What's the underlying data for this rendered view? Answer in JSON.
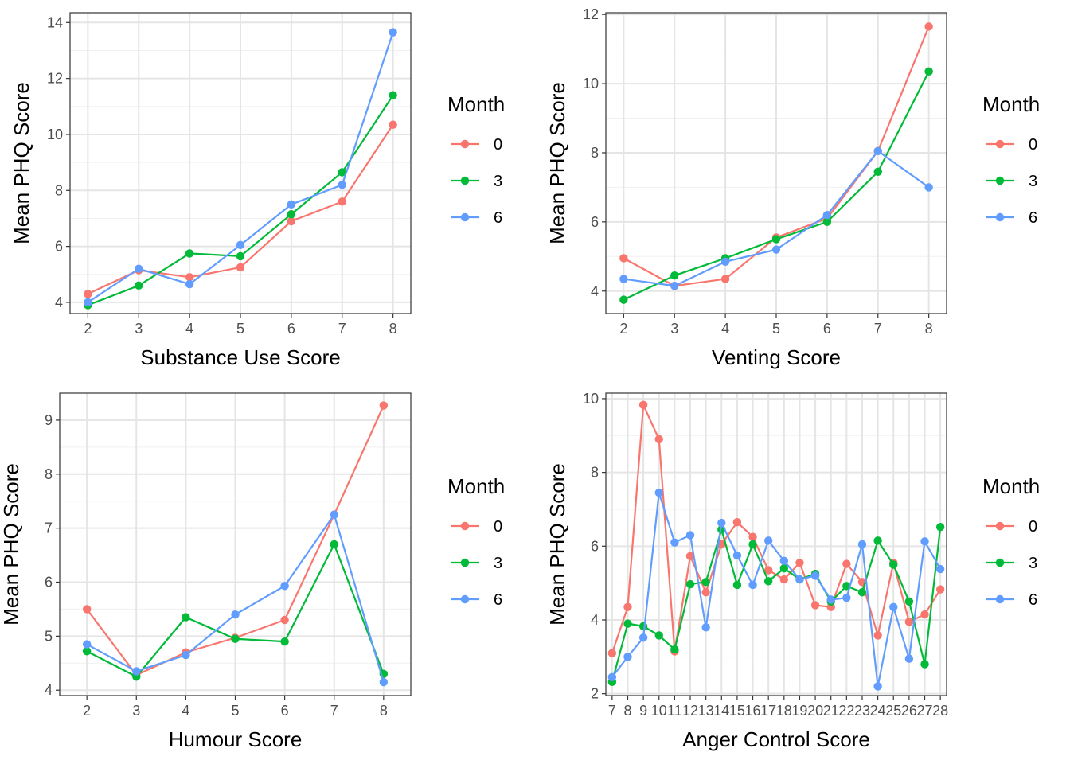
{
  "colors": {
    "month_0": "#F8766D",
    "month_3": "#00BA38",
    "month_6": "#619CFF"
  },
  "legend": {
    "title": "Month",
    "entries": [
      {
        "label": "0",
        "color": "#F8766D"
      },
      {
        "label": "3",
        "color": "#00BA38"
      },
      {
        "label": "6",
        "color": "#619CFF"
      }
    ]
  },
  "chart_data": [
    {
      "type": "line",
      "xlabel": "Substance Use Score",
      "ylabel": "Mean PHQ Score",
      "x": [
        2,
        3,
        4,
        5,
        6,
        7,
        8
      ],
      "xlim": [
        1.65,
        8.35
      ],
      "ylim": [
        3.6,
        14.35
      ],
      "yticks": [
        4,
        6,
        8,
        10,
        12,
        14
      ],
      "grid": true,
      "legend_position": "right",
      "series": [
        {
          "name": "0",
          "color": "#F8766D",
          "values": [
            4.3,
            5.15,
            4.9,
            5.25,
            6.9,
            7.6,
            10.35
          ]
        },
        {
          "name": "3",
          "color": "#00BA38",
          "values": [
            3.9,
            4.6,
            5.75,
            5.65,
            7.15,
            8.65,
            11.4
          ]
        },
        {
          "name": "6",
          "color": "#619CFF",
          "values": [
            4.0,
            5.2,
            4.65,
            6.05,
            7.5,
            8.2,
            13.65
          ]
        }
      ]
    },
    {
      "type": "line",
      "xlabel": "Venting Score",
      "ylabel": "Mean PHQ Score",
      "x": [
        2,
        3,
        4,
        5,
        6,
        7,
        8
      ],
      "xlim": [
        1.65,
        8.35
      ],
      "ylim": [
        3.35,
        12.05
      ],
      "yticks": [
        4,
        6,
        8,
        10,
        12
      ],
      "grid": true,
      "legend_position": "right",
      "series": [
        {
          "name": "0",
          "color": "#F8766D",
          "values": [
            4.95,
            4.15,
            4.35,
            5.55,
            6.1,
            8.05,
            11.65
          ]
        },
        {
          "name": "3",
          "color": "#00BA38",
          "values": [
            3.75,
            4.45,
            4.95,
            5.5,
            6.0,
            7.45,
            10.35
          ]
        },
        {
          "name": "6",
          "color": "#619CFF",
          "values": [
            4.35,
            4.15,
            4.85,
            5.2,
            6.2,
            8.05,
            7.0
          ]
        }
      ]
    },
    {
      "type": "line",
      "xlabel": "Humour Score",
      "ylabel": "Mean PHQ Score",
      "x": [
        2,
        3,
        4,
        5,
        6,
        7,
        8
      ],
      "xlim": [
        1.45,
        8.55
      ],
      "ylim": [
        3.9,
        9.5
      ],
      "yticks": [
        4,
        5,
        6,
        7,
        8,
        9
      ],
      "grid": true,
      "legend_position": "right",
      "series": [
        {
          "name": "0",
          "color": "#F8766D",
          "values": [
            5.5,
            4.28,
            4.7,
            4.97,
            5.3,
            7.25,
            9.27
          ]
        },
        {
          "name": "3",
          "color": "#00BA38",
          "values": [
            4.72,
            4.25,
            5.35,
            4.95,
            4.9,
            6.7,
            4.3
          ]
        },
        {
          "name": "6",
          "color": "#619CFF",
          "values": [
            4.85,
            4.35,
            4.65,
            5.4,
            5.93,
            7.25,
            4.15
          ]
        }
      ]
    },
    {
      "type": "line",
      "xlabel": "Anger Control Score",
      "ylabel": "Mean PHQ Score",
      "x": [
        7,
        8,
        9,
        10,
        11,
        12,
        13,
        14,
        15,
        16,
        17,
        18,
        19,
        20,
        21,
        22,
        23,
        24,
        25,
        26,
        27,
        28
      ],
      "xlim": [
        6.6,
        28.4
      ],
      "ylim": [
        1.95,
        10.15
      ],
      "yticks": [
        2,
        4,
        6,
        8,
        10
      ],
      "grid": true,
      "legend_position": "right",
      "series": [
        {
          "name": "0",
          "color": "#F8766D",
          "values": [
            3.1,
            4.35,
            9.83,
            8.9,
            3.15,
            5.73,
            4.75,
            6.05,
            6.65,
            6.25,
            5.35,
            5.1,
            5.55,
            4.4,
            4.35,
            5.52,
            5.03,
            3.58,
            5.55,
            3.95,
            4.15,
            4.83
          ]
        },
        {
          "name": "3",
          "color": "#00BA38",
          "values": [
            2.32,
            3.9,
            3.83,
            3.58,
            3.2,
            4.97,
            5.03,
            6.45,
            4.95,
            6.05,
            5.05,
            5.4,
            5.1,
            5.25,
            4.5,
            4.92,
            4.75,
            6.15,
            5.5,
            4.5,
            2.8,
            6.52
          ]
        },
        {
          "name": "6",
          "color": "#619CFF",
          "values": [
            2.45,
            3.0,
            3.52,
            7.45,
            6.1,
            6.3,
            3.8,
            6.63,
            5.75,
            4.95,
            6.15,
            5.6,
            5.1,
            5.2,
            4.55,
            4.6,
            6.05,
            2.2,
            4.35,
            2.95,
            6.13,
            5.38
          ]
        }
      ]
    }
  ]
}
